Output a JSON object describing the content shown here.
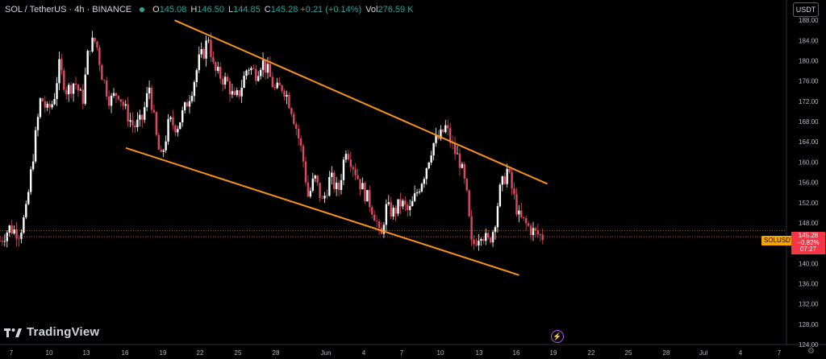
{
  "header": {
    "symbol": "SOL / TetherUS · 4h · BINANCE",
    "open_label": "O",
    "open": "145.08",
    "high_label": "H",
    "high": "146.50",
    "low_label": "L",
    "low": "144.85",
    "close_label": "C",
    "close": "145.28",
    "change": "+0.21 (+0.14%)",
    "vol_label": "Vol",
    "vol": "276.59 K"
  },
  "currency_button": "USDT",
  "symbol_tag": "SOLUSDT",
  "price_tag": {
    "price": "145.28",
    "change": "−0.82%",
    "countdown": "07:27"
  },
  "brand": "TradingView",
  "colors": {
    "up": "#ffffff",
    "down": "#e0485f",
    "trendline": "#f7931a",
    "accent": "#26a69a"
  },
  "icons": {
    "settings": "gear-icon",
    "lightning": "lightning-icon"
  },
  "price_axis": [
    "188.00",
    "184.00",
    "180.00",
    "176.00",
    "172.00",
    "168.00",
    "164.00",
    "160.00",
    "156.00",
    "152.00",
    "148.00",
    "140.00",
    "136.00",
    "132.00",
    "128.00",
    "124.00"
  ],
  "time_axis": [
    "7",
    "10",
    "13",
    "16",
    "19",
    "22",
    "25",
    "28",
    "Jun",
    "4",
    "7",
    "10",
    "13",
    "16",
    "19",
    "22",
    "25",
    "28",
    "Jul",
    "4",
    "7"
  ],
  "chart_data": {
    "type": "candlestick",
    "y_range": [
      124,
      192
    ],
    "price_line": 145.28,
    "upper_trendline": [
      [
        0.222,
        188.0
      ],
      [
        0.696,
        155.7
      ]
    ],
    "lower_trendline": [
      [
        0.16,
        162.8
      ],
      [
        0.66,
        137.7
      ]
    ],
    "keypoints": [
      [
        0.0,
        144.5
      ],
      [
        0.012,
        147.0
      ],
      [
        0.025,
        146.0
      ],
      [
        0.033,
        150.0
      ],
      [
        0.043,
        162.5
      ],
      [
        0.052,
        173.0
      ],
      [
        0.06,
        170.0
      ],
      [
        0.068,
        172.0
      ],
      [
        0.075,
        179.0
      ],
      [
        0.085,
        174.0
      ],
      [
        0.095,
        176.0
      ],
      [
        0.105,
        172.0
      ],
      [
        0.113,
        183.0
      ],
      [
        0.122,
        184.0
      ],
      [
        0.13,
        177.0
      ],
      [
        0.14,
        172.0
      ],
      [
        0.15,
        174.0
      ],
      [
        0.16,
        170.0
      ],
      [
        0.17,
        167.0
      ],
      [
        0.18,
        168.0
      ],
      [
        0.19,
        175.0
      ],
      [
        0.2,
        163.5
      ],
      [
        0.205,
        160.5
      ],
      [
        0.215,
        168.0
      ],
      [
        0.225,
        167.0
      ],
      [
        0.235,
        170.5
      ],
      [
        0.245,
        175.0
      ],
      [
        0.253,
        180.0
      ],
      [
        0.26,
        182.0
      ],
      [
        0.265,
        185.0
      ],
      [
        0.272,
        178.0
      ],
      [
        0.28,
        177.0
      ],
      [
        0.29,
        175.5
      ],
      [
        0.298,
        172.0
      ],
      [
        0.305,
        174.0
      ],
      [
        0.315,
        179.0
      ],
      [
        0.325,
        177.5
      ],
      [
        0.333,
        180.0
      ],
      [
        0.34,
        178.0
      ],
      [
        0.35,
        174.0
      ],
      [
        0.36,
        175.0
      ],
      [
        0.37,
        171.0
      ],
      [
        0.378,
        166.0
      ],
      [
        0.385,
        161.0
      ],
      [
        0.392,
        153.0
      ],
      [
        0.4,
        157.0
      ],
      [
        0.41,
        152.0
      ],
      [
        0.42,
        157.0
      ],
      [
        0.43,
        154.0
      ],
      [
        0.44,
        163.0
      ],
      [
        0.45,
        159.0
      ],
      [
        0.46,
        155.0
      ],
      [
        0.47,
        152.0
      ],
      [
        0.478,
        149.0
      ],
      [
        0.484,
        144.0
      ],
      [
        0.49,
        151.0
      ],
      [
        0.5,
        150.0
      ],
      [
        0.51,
        152.0
      ],
      [
        0.52,
        150.0
      ],
      [
        0.53,
        154.0
      ],
      [
        0.54,
        158.0
      ],
      [
        0.55,
        163.5
      ],
      [
        0.56,
        165.0
      ],
      [
        0.567,
        167.0
      ],
      [
        0.575,
        163.0
      ],
      [
        0.585,
        160.0
      ],
      [
        0.593,
        154.0
      ],
      [
        0.6,
        143.0
      ],
      [
        0.606,
        145.0
      ],
      [
        0.612,
        146.5
      ],
      [
        0.62,
        144.0
      ],
      [
        0.628,
        147.0
      ],
      [
        0.635,
        154.0
      ],
      [
        0.645,
        158.5
      ],
      [
        0.652,
        154.0
      ],
      [
        0.66,
        149.0
      ],
      [
        0.67,
        147.5
      ],
      [
        0.68,
        146.0
      ],
      [
        0.69,
        145.28
      ]
    ]
  }
}
